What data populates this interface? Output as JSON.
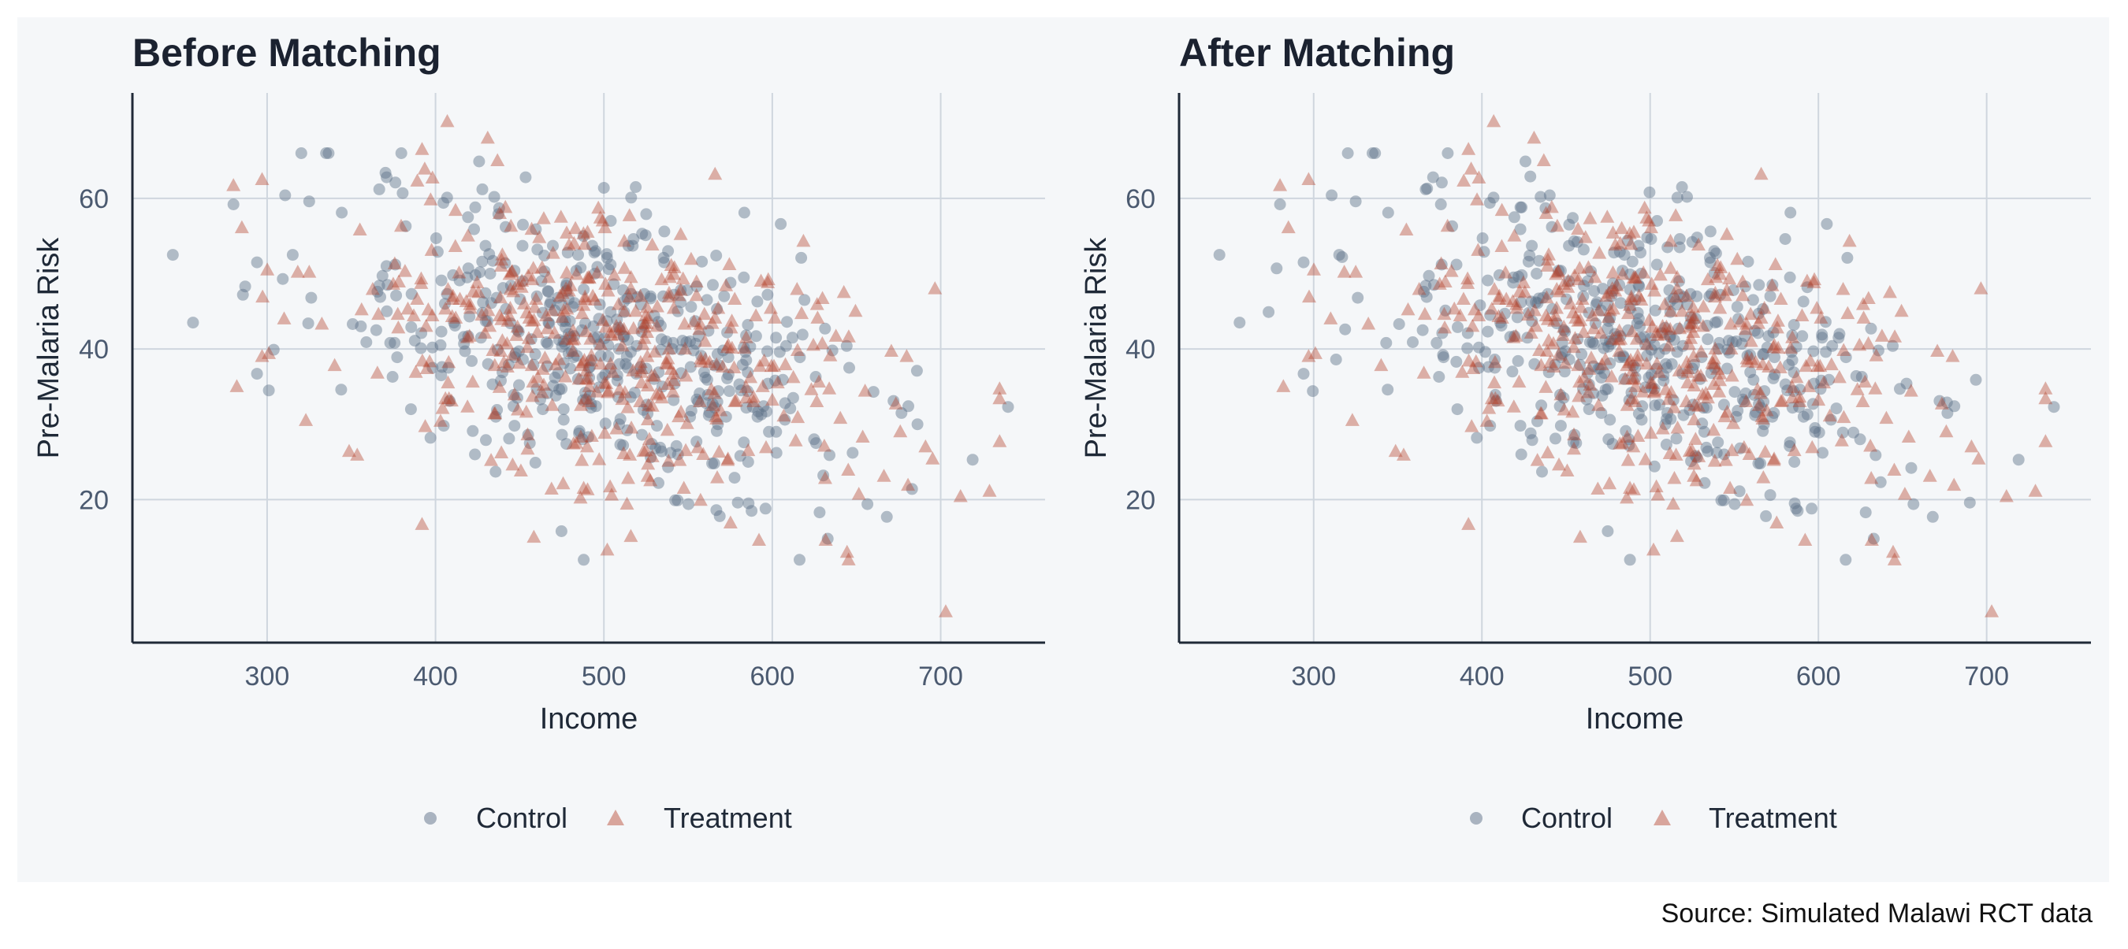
{
  "caption": "Source: Simulated Malawi RCT data",
  "colors": {
    "panel_bg": "#f5f7f9",
    "grid": "#cfd6de",
    "axis_line": "#1f2937",
    "title": "#1b2230",
    "axis_label": "#1f2937",
    "tick_label": "#4b5a70",
    "control": "#5e7087",
    "treatment": "#b5402a"
  },
  "chart_data": [
    {
      "type": "scatter",
      "title": "Before Matching",
      "xlabel": "Income",
      "ylabel": "Pre-Malaria Risk",
      "xlim": [
        220,
        762
      ],
      "ylim": [
        1,
        74
      ],
      "xticks": [
        300,
        400,
        500,
        600,
        700
      ],
      "xtick_labels": [
        "300",
        "400",
        "500",
        "600",
        "700"
      ],
      "yticks": [
        20,
        40,
        60
      ],
      "ytick_labels": [
        "20",
        "40",
        "60"
      ],
      "grid": true,
      "legend_position": "bottom",
      "legend": [
        "Control",
        "Treatment"
      ],
      "series": [
        {
          "name": "Control",
          "marker": "circle",
          "points": []
        },
        {
          "name": "Treatment",
          "marker": "triangle",
          "points": []
        }
      ]
    },
    {
      "type": "scatter",
      "title": "After Matching",
      "xlabel": "Income",
      "ylabel": "Pre-Malaria Risk",
      "xlim": [
        220,
        762
      ],
      "ylim": [
        1,
        74
      ],
      "xticks": [
        300,
        400,
        500,
        600,
        700
      ],
      "xtick_labels": [
        "300",
        "400",
        "500",
        "600",
        "700"
      ],
      "yticks": [
        20,
        40,
        60
      ],
      "ytick_labels": [
        "20",
        "40",
        "60"
      ],
      "grid": true,
      "legend_position": "bottom",
      "legend": [
        "Control",
        "Treatment"
      ],
      "series": [
        {
          "name": "Control",
          "marker": "circle",
          "points": []
        },
        {
          "name": "Treatment",
          "marker": "triangle",
          "points": []
        }
      ]
    }
  ]
}
